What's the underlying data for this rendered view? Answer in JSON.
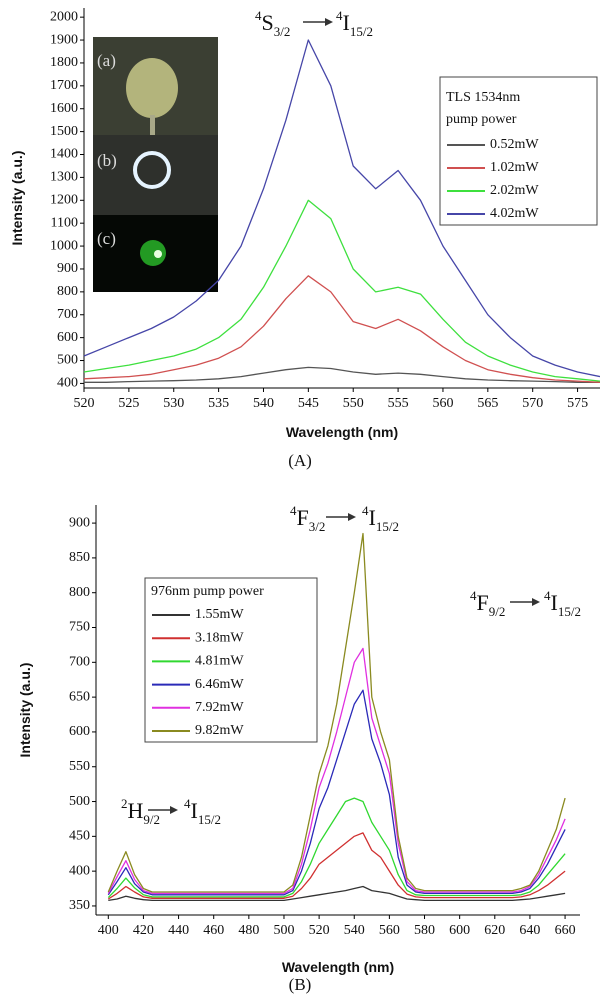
{
  "chart_data": [
    {
      "type": "line",
      "panel_label": "(A)",
      "xlabel": "Wavelength (nm)",
      "ylabel": "Intensity (a.u.)",
      "annotations": [
        [
          "4",
          "S",
          "3/2",
          "4",
          "I",
          "15/2"
        ]
      ],
      "inset_labels": [
        "(a)",
        "(b)",
        "(c)"
      ],
      "legend_title": [
        "TLS 1534nm",
        "pump power"
      ],
      "x": [
        520,
        522.5,
        525,
        527.5,
        530,
        532.5,
        535,
        537.5,
        540,
        542.5,
        545,
        547.5,
        550,
        552.5,
        555,
        557.5,
        560,
        562.5,
        565,
        567.5,
        570,
        572.5,
        575,
        577.5
      ],
      "series": [
        {
          "name": "0.52mW",
          "color": "#555555",
          "values": [
            405,
            405,
            408,
            410,
            412,
            415,
            420,
            430,
            445,
            460,
            470,
            465,
            450,
            440,
            445,
            440,
            430,
            420,
            415,
            412,
            410,
            408,
            405,
            405
          ]
        },
        {
          "name": "1.02mW",
          "color": "#d05050",
          "values": [
            420,
            425,
            430,
            440,
            460,
            480,
            510,
            560,
            650,
            770,
            870,
            800,
            670,
            640,
            680,
            630,
            560,
            500,
            460,
            440,
            425,
            415,
            410,
            405
          ]
        },
        {
          "name": "2.02mW",
          "color": "#3ee03e",
          "values": [
            450,
            465,
            480,
            500,
            520,
            550,
            600,
            680,
            820,
            1000,
            1200,
            1120,
            900,
            800,
            820,
            790,
            680,
            580,
            520,
            480,
            450,
            430,
            420,
            410
          ]
        },
        {
          "name": "4.02mW",
          "color": "#4646a8",
          "values": [
            520,
            560,
            600,
            640,
            690,
            760,
            850,
            1000,
            1250,
            1550,
            1900,
            1700,
            1350,
            1250,
            1330,
            1200,
            1000,
            850,
            700,
            600,
            520,
            480,
            450,
            430
          ]
        }
      ],
      "xlim": [
        520,
        577.5
      ],
      "xticks": [
        520,
        525,
        530,
        535,
        540,
        545,
        550,
        555,
        560,
        565,
        570,
        575
      ],
      "ylim": [
        380,
        2040
      ],
      "yticks": [
        400,
        500,
        600,
        700,
        800,
        900,
        1000,
        1100,
        1200,
        1300,
        1400,
        1500,
        1600,
        1700,
        1800,
        1900,
        2000
      ],
      "grid": false,
      "legend": "upper right"
    },
    {
      "type": "line",
      "panel_label": "(B)",
      "xlabel": "Wavelength (nm)",
      "ylabel": "Intensity (a.u.)",
      "annotations": [
        [
          "4",
          "F",
          "3/2",
          "4",
          "I",
          "15/2"
        ],
        [
          "2",
          "H",
          "9/2",
          "4",
          "I",
          "15/2"
        ],
        [
          "4",
          "F",
          "9/2",
          "4",
          "I",
          "15/2"
        ]
      ],
      "legend_title": [
        "976nm pump power"
      ],
      "x": [
        400,
        405,
        410,
        415,
        420,
        425,
        430,
        435,
        440,
        445,
        450,
        455,
        460,
        465,
        470,
        475,
        480,
        485,
        490,
        495,
        500,
        505,
        510,
        515,
        520,
        525,
        530,
        535,
        540,
        545,
        550,
        555,
        560,
        565,
        570,
        575,
        580,
        585,
        590,
        595,
        600,
        605,
        610,
        615,
        620,
        625,
        630,
        635,
        640,
        645,
        650,
        655,
        660
      ],
      "series": [
        {
          "name": "1.55mW",
          "color": "#333333",
          "values": [
            358,
            360,
            364,
            361,
            359,
            358,
            358,
            358,
            358,
            358,
            358,
            358,
            358,
            358,
            358,
            358,
            358,
            358,
            358,
            358,
            358,
            360,
            362,
            364,
            366,
            368,
            370,
            372,
            375,
            378,
            372,
            370,
            368,
            364,
            360,
            359,
            358,
            358,
            358,
            358,
            358,
            358,
            358,
            358,
            358,
            358,
            358,
            359,
            360,
            362,
            364,
            366,
            368
          ]
        },
        {
          "name": "3.18mW",
          "color": "#d03030",
          "values": [
            360,
            368,
            378,
            370,
            363,
            361,
            361,
            361,
            361,
            361,
            361,
            361,
            361,
            361,
            361,
            361,
            361,
            361,
            361,
            361,
            361,
            364,
            375,
            390,
            410,
            420,
            430,
            440,
            450,
            455,
            430,
            420,
            400,
            380,
            367,
            363,
            362,
            362,
            362,
            362,
            362,
            362,
            362,
            362,
            362,
            362,
            362,
            363,
            366,
            372,
            380,
            390,
            400
          ]
        },
        {
          "name": "4.81mW",
          "color": "#30d830",
          "values": [
            362,
            375,
            390,
            376,
            366,
            363,
            363,
            363,
            363,
            363,
            363,
            363,
            363,
            363,
            363,
            363,
            363,
            363,
            363,
            363,
            363,
            368,
            385,
            410,
            440,
            460,
            480,
            500,
            505,
            500,
            470,
            450,
            430,
            395,
            372,
            366,
            365,
            365,
            365,
            365,
            365,
            365,
            365,
            365,
            365,
            365,
            365,
            366,
            370,
            380,
            395,
            410,
            425
          ]
        },
        {
          "name": "6.46mW",
          "color": "#2a2ab8",
          "values": [
            366,
            385,
            405,
            382,
            370,
            366,
            366,
            366,
            366,
            366,
            366,
            366,
            366,
            366,
            366,
            366,
            366,
            366,
            366,
            366,
            366,
            372,
            400,
            440,
            490,
            520,
            560,
            600,
            640,
            660,
            590,
            555,
            510,
            420,
            380,
            370,
            368,
            368,
            368,
            368,
            368,
            368,
            368,
            368,
            368,
            368,
            368,
            370,
            375,
            390,
            410,
            435,
            460
          ]
        },
        {
          "name": "7.92mW",
          "color": "#e030e0",
          "values": [
            368,
            392,
            415,
            388,
            372,
            368,
            368,
            368,
            368,
            368,
            368,
            368,
            368,
            368,
            368,
            368,
            368,
            368,
            368,
            368,
            368,
            375,
            410,
            460,
            520,
            555,
            600,
            650,
            700,
            720,
            620,
            580,
            540,
            440,
            385,
            372,
            370,
            370,
            370,
            370,
            370,
            370,
            370,
            370,
            370,
            370,
            370,
            372,
            378,
            395,
            420,
            445,
            475
          ]
        },
        {
          "name": "9.82mW",
          "color": "#8a8a20",
          "values": [
            370,
            400,
            428,
            395,
            375,
            370,
            370,
            370,
            370,
            370,
            370,
            370,
            370,
            370,
            370,
            370,
            370,
            370,
            370,
            370,
            370,
            380,
            420,
            480,
            540,
            580,
            640,
            720,
            800,
            885,
            650,
            600,
            560,
            450,
            390,
            375,
            372,
            372,
            372,
            372,
            372,
            372,
            372,
            372,
            372,
            372,
            372,
            375,
            380,
            400,
            430,
            460,
            505
          ]
        }
      ],
      "xlim": [
        393,
        668.5
      ],
      "xticks": [
        400,
        420,
        440,
        460,
        480,
        500,
        520,
        540,
        560,
        580,
        600,
        620,
        640,
        660
      ],
      "ylim": [
        337,
        926
      ],
      "yticks": [
        350,
        400,
        450,
        500,
        550,
        600,
        650,
        700,
        750,
        800,
        850,
        900
      ],
      "grid": false,
      "legend": "upper left"
    }
  ]
}
